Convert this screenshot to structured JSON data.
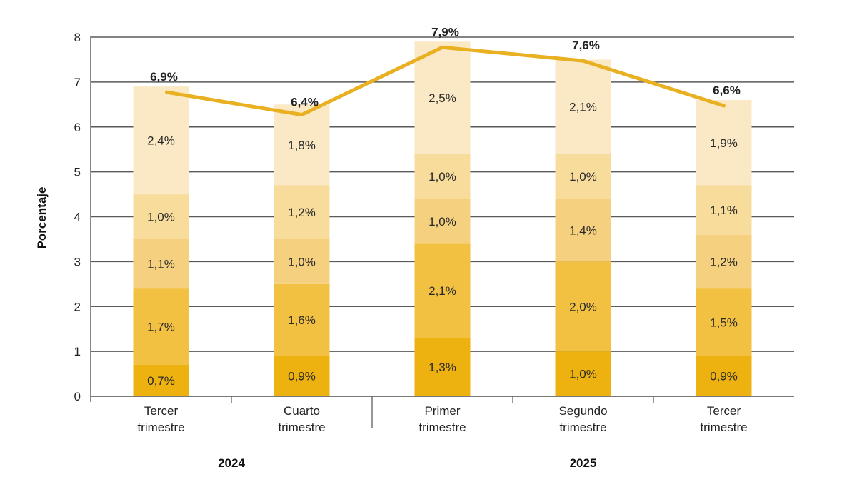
{
  "chart_data": {
    "type": "bar",
    "stacked": true,
    "title": "",
    "xlabel": "",
    "ylabel": "Porcentaje",
    "ylim": [
      0,
      8
    ],
    "yticks": [
      0,
      1,
      2,
      3,
      4,
      5,
      6,
      7,
      8
    ],
    "grid": true,
    "categories": [
      "Tercer trimestre",
      "Cuarto trimestre",
      "Primer trimestre",
      "Segundo trimestre",
      "Tercer trimestre"
    ],
    "category_lines": [
      [
        "Tercer",
        "trimestre"
      ],
      [
        "Cuarto",
        "trimestre"
      ],
      [
        "Primer",
        "trimestre"
      ],
      [
        "Segundo",
        "trimestre"
      ],
      [
        "Tercer",
        "trimestre"
      ]
    ],
    "year_groups": [
      {
        "label": "2024",
        "categories": [
          0,
          1
        ]
      },
      {
        "label": "2025",
        "categories": [
          2,
          3,
          4
        ]
      }
    ],
    "series": [
      {
        "name": "segment-1",
        "color": "#EDB20F",
        "values": [
          0.7,
          0.9,
          1.3,
          1.0,
          0.9
        ],
        "labels": [
          "0,7%",
          "0,9%",
          "1,3%",
          "1,0%",
          "0,9%"
        ]
      },
      {
        "name": "segment-2",
        "color": "#F3C142",
        "values": [
          1.7,
          1.6,
          2.1,
          2.0,
          1.5
        ],
        "labels": [
          "1,7%",
          "1,6%",
          "2,1%",
          "2,0%",
          "1,5%"
        ]
      },
      {
        "name": "segment-3",
        "color": "#F5D07F",
        "values": [
          1.1,
          1.0,
          1.0,
          1.4,
          1.2
        ],
        "labels": [
          "1,1%",
          "1,0%",
          "1,0%",
          "1,4%",
          "1,2%"
        ]
      },
      {
        "name": "segment-4",
        "color": "#F8DC9C",
        "values": [
          1.0,
          1.2,
          1.0,
          1.0,
          1.1
        ],
        "labels": [
          "1,0%",
          "1,2%",
          "1,0%",
          "1,0%",
          "1,1%"
        ]
      },
      {
        "name": "segment-5",
        "color": "#FBE8C4",
        "values": [
          2.4,
          1.8,
          2.5,
          2.1,
          1.9
        ],
        "labels": [
          "2,4%",
          "1,8%",
          "2,5%",
          "2,1%",
          "1,9%"
        ]
      }
    ],
    "total_line": {
      "name": "Total",
      "color": "#E9B022",
      "values": [
        6.9,
        6.4,
        7.9,
        7.6,
        6.6
      ],
      "labels": [
        "6,9%",
        "6,4%",
        "7,9%",
        "7,6%",
        "6,6%"
      ]
    }
  }
}
